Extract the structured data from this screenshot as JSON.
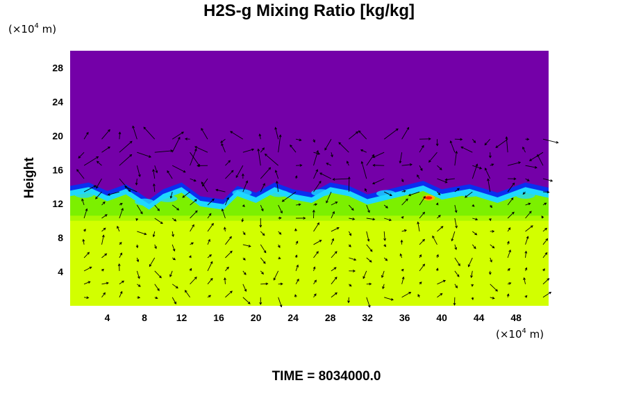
{
  "chart_data": {
    "type": "heatmap",
    "title": "H2S-g Mixing Ratio [kg/kg]",
    "ylabel": "Height",
    "y_unit": {
      "base": "(×10",
      "sup": "4",
      "rest": " m)"
    },
    "x_unit": {
      "base": "(×10",
      "sup": "4",
      "rest": " m)"
    },
    "xlim": [
      0,
      51.5
    ],
    "ylim": [
      0,
      30
    ],
    "x_ticks": [
      4,
      8,
      12,
      16,
      20,
      24,
      28,
      32,
      36,
      40,
      44,
      48
    ],
    "y_ticks": [
      4,
      8,
      12,
      16,
      20,
      24,
      28
    ],
    "colors": {
      "background_field": "#7400a8",
      "lower_layer": "#d2ff00",
      "transition_green": "#7cf000",
      "front_blue": "#0a2ef0",
      "front_cyan": "#1fd8ff",
      "hotspot_red": "#ff2000",
      "vectors": "#000000"
    },
    "interface_height": [
      13.2,
      13.6,
      12.6,
      13.4,
      11.6,
      12.8,
      13.6,
      12.0,
      11.6,
      13.2,
      12.4,
      13.6,
      12.8,
      12.4,
      13.6,
      13.2,
      12.2,
      13.0,
      13.8,
      12.8,
      13.4,
      12.4,
      13.6,
      13.0
    ],
    "interface_x": [
      0,
      2,
      4,
      6,
      8.5,
      10,
      12,
      14,
      16.5,
      18,
      20,
      22,
      24,
      26,
      28,
      30,
      32,
      35,
      38,
      40,
      43,
      46,
      49,
      51.5
    ],
    "grid": false
  },
  "footer": {
    "time_label": "TIME = 8034000.0"
  }
}
